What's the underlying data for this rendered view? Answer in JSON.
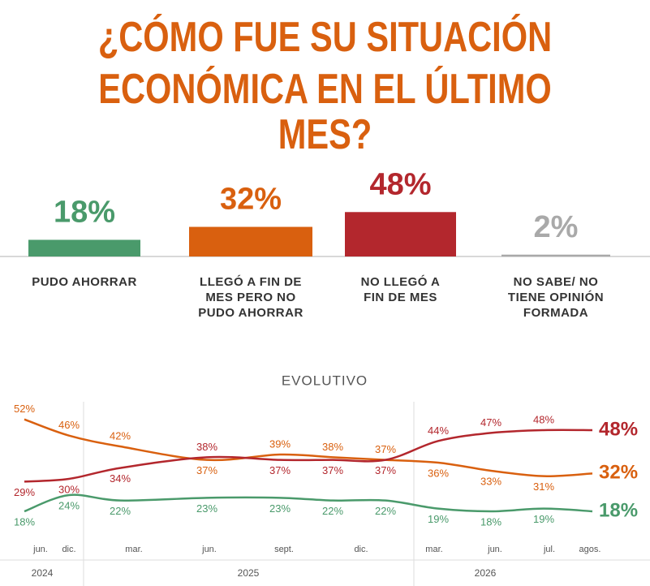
{
  "header": {
    "title_lines": [
      "¿CÓMO FUE SU SITUACIÓN",
      "ECONÓMICA EN EL ÚLTIMO MES?"
    ]
  },
  "chart_data": [
    {
      "type": "bar",
      "categories": [
        "PUDO AHORRAR",
        "LLEGÓ A FIN DE\nMES PERO NO\nPUDO AHORRAR",
        "NO LLEGÓ A\nFIN DE MES",
        "NO SABE/ NO\nTIENE OPINIÓN\nFORMADA"
      ],
      "values": [
        18,
        32,
        48,
        2
      ],
      "value_labels": [
        "18%",
        "32%",
        "48%",
        "2%"
      ],
      "colors": [
        "#4a9a6b",
        "#d9600f",
        "#b3272d",
        "#a9a9a9"
      ],
      "ylim": [
        0,
        50
      ]
    },
    {
      "type": "line",
      "title": "EVOLUTIVO",
      "categories": [
        "jun.",
        "dic.",
        "mar.",
        "jun.",
        "sept.",
        null,
        "dic.",
        "mar.",
        "jun.",
        "jul.",
        "agos."
      ],
      "years": [
        "2024",
        "2025",
        "2026"
      ],
      "ylim": [
        12,
        60
      ],
      "series": [
        {
          "color": "#d9600f",
          "values": [
            52,
            46,
            42,
            37,
            39,
            38,
            37,
            36,
            33,
            31,
            32
          ],
          "value_labels": [
            "52%",
            "46%",
            "42%",
            "37%",
            "39%",
            "38%",
            "37%",
            "36%",
            "33%",
            "31%",
            "32%"
          ]
        },
        {
          "color": "#b3272d",
          "values": [
            29,
            30,
            34,
            38,
            37,
            37,
            37,
            44,
            47,
            48,
            48
          ],
          "value_labels": [
            "29%",
            "30%",
            "34%",
            "38%",
            "37%",
            "37%",
            "37%",
            "44%",
            "47%",
            "48%",
            "48%"
          ]
        },
        {
          "color": "#4a9a6b",
          "values": [
            18,
            24,
            22,
            23,
            23,
            22,
            22,
            19,
            18,
            19,
            18
          ],
          "value_labels": [
            "18%",
            "24%",
            "22%",
            "23%",
            "23%",
            "22%",
            "22%",
            "19%",
            "18%",
            "19%",
            "18%"
          ]
        }
      ]
    }
  ]
}
